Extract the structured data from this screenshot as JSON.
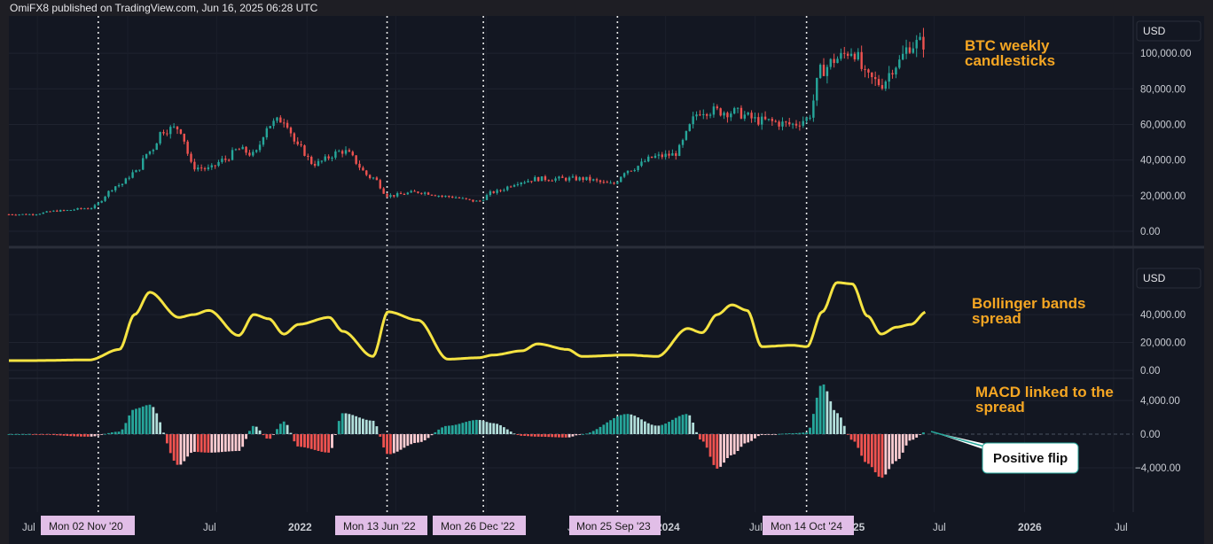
{
  "header": {
    "publisher_text": "OmiFX8 published on TradingView.com, Jun 16, 2025 06:28 UTC"
  },
  "colors": {
    "background": "#131722",
    "up": "#26a69a",
    "down": "#ef5350",
    "macd_up_strong": "#26a69a",
    "macd_up_weak": "#b2dfdb",
    "macd_down_strong": "#ef5350",
    "macd_down_weak": "#ffcdd2",
    "spread_line": "#f5e342",
    "annotation": "#f5a623",
    "event_tag": "#e1bee7"
  },
  "price_pane": {
    "currency_label": "USD",
    "annotation_line1": "BTC weekly",
    "annotation_line2": "candlesticks",
    "y_ticks": [
      "100,000.00",
      "80,000.00",
      "60,000.00",
      "40,000.00",
      "20,000.00",
      "0.00"
    ]
  },
  "spread_pane": {
    "currency_label": "USD",
    "annotation_line1": "Bollinger bands",
    "annotation_line2": "spread",
    "y_ticks": [
      "40,000.00",
      "20,000.00",
      "0.00"
    ]
  },
  "macd_pane": {
    "annotation_line1": "MACD linked to the",
    "annotation_line2": "spread",
    "y_ticks": [
      "4,000.00",
      "0.00",
      "−4,000.00"
    ],
    "callout": "Positive flip"
  },
  "x_axis": {
    "ticks": [
      "Jul",
      "Jul",
      "2022",
      "2024",
      "Jul",
      "Jul",
      "2026",
      "Jul"
    ],
    "partial_labels": [
      "J",
      "25"
    ]
  },
  "event_tags": [
    "Mon 02 Nov '20",
    "Mon 13 Jun '22",
    "Mon 26 Dec '22",
    "Mon 25 Sep '23",
    "Mon 14 Oct '24"
  ],
  "chart_data": {
    "type": "line",
    "title": "",
    "series": [
      {
        "name": "BTC weekly candlesticks",
        "x": [
          "2020-06",
          "2020-08",
          "2020-10",
          "2020-12",
          "2021-01",
          "2021-02",
          "2021-03",
          "2021-04",
          "2021-05",
          "2021-06",
          "2021-07",
          "2021-08",
          "2021-09",
          "2021-10",
          "2021-11",
          "2021-12",
          "2022-01",
          "2022-03",
          "2022-05",
          "2022-06",
          "2022-08",
          "2022-10",
          "2022-12",
          "2023-01",
          "2023-03",
          "2023-04",
          "2023-07",
          "2023-09",
          "2023-10",
          "2023-12",
          "2024-01",
          "2024-03",
          "2024-05",
          "2024-07",
          "2024-09",
          "2024-10",
          "2024-11",
          "2024-12",
          "2025-01",
          "2025-02",
          "2025-03",
          "2025-04",
          "2025-05",
          "2025-06"
        ],
        "values": [
          9500,
          11500,
          13000,
          26000,
          33000,
          45000,
          57000,
          58000,
          36000,
          35000,
          40000,
          46000,
          43000,
          60000,
          63000,
          47000,
          38000,
          45000,
          30000,
          20000,
          22000,
          19500,
          16800,
          22000,
          28000,
          29500,
          29500,
          26500,
          34500,
          42000,
          43000,
          68000,
          67000,
          62000,
          60000,
          63000,
          91000,
          97000,
          102000,
          86000,
          83000,
          94000,
          105000,
          106000
        ]
      },
      {
        "name": "Bollinger bands spread",
        "x": [
          "2020-06",
          "2020-10",
          "2020-12",
          "2021-01",
          "2021-02",
          "2021-04",
          "2021-05",
          "2021-06",
          "2021-08",
          "2021-09",
          "2021-10",
          "2021-11",
          "2021-12",
          "2022-02",
          "2022-03",
          "2022-05",
          "2022-06",
          "2022-08",
          "2022-10",
          "2022-12",
          "2023-01",
          "2023-03",
          "2023-04",
          "2023-06",
          "2023-07",
          "2023-10",
          "2023-12",
          "2024-02",
          "2024-03",
          "2024-04",
          "2024-05",
          "2024-06",
          "2024-07",
          "2024-09",
          "2024-10",
          "2024-11",
          "2024-12",
          "2025-01",
          "2025-02",
          "2025-03",
          "2025-04",
          "2025-05",
          "2025-06"
        ],
        "values": [
          7000,
          7500,
          15000,
          40000,
          56000,
          38000,
          40000,
          43000,
          25000,
          40000,
          37000,
          26000,
          33000,
          38000,
          28000,
          10000,
          42000,
          36000,
          8000,
          9000,
          11000,
          14000,
          19000,
          15000,
          10000,
          11000,
          10000,
          30000,
          27000,
          40000,
          47000,
          43000,
          17000,
          18000,
          17000,
          42000,
          63000,
          62000,
          39000,
          26000,
          31000,
          33000,
          42000
        ]
      },
      {
        "name": "MACD linked to the spread",
        "x": [
          "2020-06",
          "2020-10",
          "2020-12",
          "2021-01",
          "2021-02",
          "2021-04",
          "2021-05",
          "2021-06",
          "2021-08",
          "2021-09",
          "2021-10",
          "2021-11",
          "2021-12",
          "2022-02",
          "2022-03",
          "2022-05",
          "2022-06",
          "2022-08",
          "2022-10",
          "2022-12",
          "2023-01",
          "2023-03",
          "2023-04",
          "2023-06",
          "2023-07",
          "2023-10",
          "2023-12",
          "2024-02",
          "2024-03",
          "2024-04",
          "2024-05",
          "2024-06",
          "2024-07",
          "2024-09",
          "2024-10",
          "2024-11",
          "2024-12",
          "2025-01",
          "2025-02",
          "2025-03",
          "2025-04",
          "2025-05",
          "2025-06"
        ],
        "values": [
          0,
          -300,
          300,
          3000,
          3500,
          -3700,
          -2100,
          -2200,
          -2000,
          1000,
          -600,
          1500,
          -1500,
          -2200,
          2500,
          1600,
          -2400,
          -1000,
          1000,
          1700,
          1300,
          -200,
          -300,
          -400,
          0,
          2400,
          1000,
          2400,
          -800,
          -4100,
          -2500,
          -1000,
          -100,
          100,
          200,
          6000,
          2500,
          -700,
          -3500,
          -5200,
          -3200,
          -700,
          300
        ]
      }
    ],
    "y_ranges": {
      "price": [
        0,
        115000
      ],
      "spread": [
        0,
        75000
      ],
      "macd": [
        -6500,
        7000
      ]
    },
    "event_markers": [
      "2020-11-02",
      "2022-06-13",
      "2022-12-26",
      "2023-09-25",
      "2024-10-14"
    ]
  }
}
